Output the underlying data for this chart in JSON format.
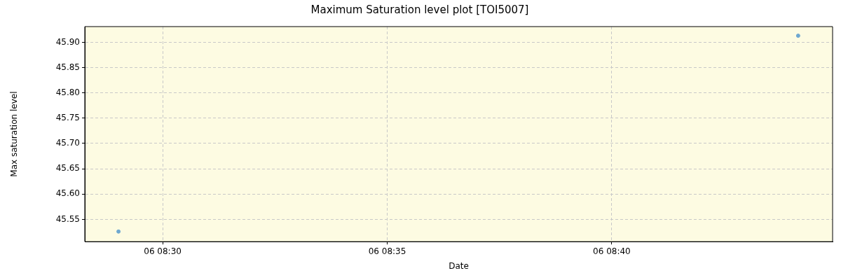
{
  "chart_data": {
    "type": "scatter",
    "title": "Maximum Saturation level plot [TOI5007]",
    "xlabel": "Date",
    "ylabel": "Max saturation level",
    "x": [
      "--01-06T08:29:01",
      "--01-06T08:44:09"
    ],
    "series": [
      {
        "color": "#6fa8d0",
        "values": [
          45.526,
          45.913
        ]
      }
    ],
    "xlim": [
      "--01-06T08:28:16",
      "--01-06T08:44:55"
    ],
    "xticks": [
      {
        "value": "--01-06T08:30",
        "label": "06 08:30"
      },
      {
        "value": "--01-06T08:35",
        "label": "06 08:35"
      },
      {
        "value": "--01-06T08:40",
        "label": "06 08:40"
      }
    ],
    "ylim": [
      45.506,
      45.931
    ],
    "yticks": [
      {
        "value": 45.55,
        "label": "45.55"
      },
      {
        "value": 45.6,
        "label": "45.60"
      },
      {
        "value": 45.65,
        "label": "45.65"
      },
      {
        "value": 45.7,
        "label": "45.70"
      },
      {
        "value": 45.75,
        "label": "45.75"
      },
      {
        "value": 45.8,
        "label": "45.80"
      },
      {
        "value": 45.85,
        "label": "45.85"
      },
      {
        "value": 45.9,
        "label": "45.90"
      }
    ],
    "grid": true,
    "marker": "circle",
    "legend": false
  }
}
